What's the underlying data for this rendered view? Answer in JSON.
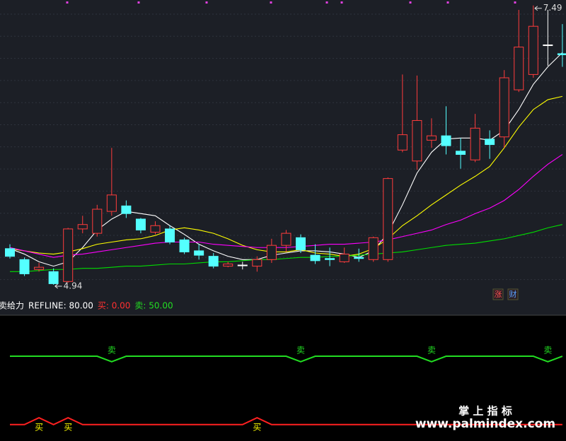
{
  "chart_data": [
    {
      "type": "candlestick",
      "open": [
        5.27,
        5.17,
        5.08,
        5.06,
        4.97,
        5.45,
        5.41,
        5.61,
        5.66,
        5.54,
        5.42,
        5.45,
        5.35,
        5.25,
        5.2,
        5.11,
        5.12,
        5.11,
        5.17,
        5.3,
        5.37,
        5.21,
        5.18,
        5.15,
        5.19,
        5.17,
        5.17,
        6.17,
        6.07,
        6.26,
        6.3,
        6.16,
        6.08,
        6.27,
        6.29,
        6.72,
        6.86,
        7.13,
        7.05
      ],
      "high": [
        5.31,
        5.19,
        5.14,
        5.09,
        5.46,
        5.57,
        5.67,
        6.19,
        5.71,
        5.55,
        5.52,
        5.48,
        5.37,
        5.31,
        5.23,
        5.15,
        5.15,
        5.2,
        5.36,
        5.44,
        5.4,
        5.31,
        5.28,
        5.28,
        5.27,
        5.38,
        5.92,
        6.86,
        6.85,
        6.46,
        6.57,
        6.28,
        6.5,
        6.35,
        6.9,
        7.45,
        7.49,
        7.45,
        7.32
      ],
      "low": [
        5.18,
        5.02,
        5.06,
        4.94,
        4.96,
        5.41,
        5.38,
        5.57,
        5.55,
        5.41,
        5.4,
        5.31,
        5.22,
        5.17,
        5.09,
        5.1,
        5.08,
        5.06,
        5.14,
        5.24,
        5.23,
        5.13,
        5.11,
        5.14,
        5.15,
        5.15,
        5.15,
        6.15,
        5.99,
        6.19,
        6.13,
        6.0,
        6.06,
        6.09,
        6.19,
        6.7,
        6.83,
        6.94,
        6.93
      ],
      "close": [
        5.2,
        5.04,
        5.1,
        4.95,
        5.45,
        5.49,
        5.63,
        5.76,
        5.59,
        5.44,
        5.48,
        5.33,
        5.24,
        5.21,
        5.11,
        5.13,
        5.12,
        5.17,
        5.3,
        5.41,
        5.26,
        5.16,
        5.17,
        5.22,
        5.18,
        5.37,
        5.91,
        6.31,
        6.44,
        6.3,
        6.21,
        6.13,
        6.37,
        6.22,
        6.83,
        7.11,
        7.3,
        7.13,
        7.04
      ],
      "up_color": "#ff3c3c",
      "down_color": "#54ffff",
      "flat_color": "#ffffff",
      "series": [
        {
          "color": "#ffffff",
          "values": [
            5.27,
            5.22,
            5.15,
            5.11,
            5.15,
            5.28,
            5.44,
            5.54,
            5.61,
            5.59,
            5.57,
            5.48,
            5.4,
            5.31,
            5.25,
            5.2,
            5.17,
            5.17,
            5.21,
            5.23,
            5.25,
            5.25,
            5.24,
            5.22,
            5.19,
            5.25,
            5.41,
            5.67,
            5.96,
            6.15,
            6.27,
            6.28,
            6.28,
            6.26,
            6.35,
            6.54,
            6.77,
            6.93,
            7.06
          ]
        },
        {
          "color": "#ffff00",
          "values": [
            5.27,
            5.25,
            5.23,
            5.22,
            5.24,
            5.27,
            5.31,
            5.33,
            5.35,
            5.36,
            5.39,
            5.44,
            5.46,
            5.44,
            5.41,
            5.36,
            5.3,
            5.26,
            5.24,
            5.24,
            5.26,
            5.23,
            5.22,
            5.2,
            5.22,
            5.27,
            5.36,
            5.48,
            5.57,
            5.67,
            5.76,
            5.85,
            5.93,
            6.02,
            6.19,
            6.38,
            6.54,
            6.63,
            6.66
          ]
        },
        {
          "color": "#ff00ff",
          "values": [
            5.28,
            5.25,
            5.22,
            5.19,
            5.21,
            5.22,
            5.24,
            5.26,
            5.28,
            5.3,
            5.32,
            5.33,
            5.33,
            5.33,
            5.31,
            5.3,
            5.29,
            5.28,
            5.28,
            5.28,
            5.29,
            5.3,
            5.31,
            5.31,
            5.32,
            5.33,
            5.35,
            5.38,
            5.41,
            5.44,
            5.49,
            5.53,
            5.59,
            5.64,
            5.71,
            5.81,
            5.93,
            6.04,
            6.13
          ]
        },
        {
          "color": "#00dd00",
          "values": [
            5.06,
            5.06,
            5.07,
            5.08,
            5.08,
            5.09,
            5.09,
            5.1,
            5.11,
            5.11,
            5.12,
            5.13,
            5.13,
            5.14,
            5.15,
            5.15,
            5.16,
            5.17,
            5.17,
            5.18,
            5.19,
            5.19,
            5.2,
            5.2,
            5.21,
            5.22,
            5.23,
            5.24,
            5.26,
            5.28,
            5.3,
            5.31,
            5.32,
            5.34,
            5.36,
            5.39,
            5.42,
            5.46,
            5.49
          ]
        }
      ],
      "ylim": [
        4.83,
        7.54
      ],
      "max_label": "7.49",
      "min_label": "4.94",
      "badges": [
        "涨",
        "财"
      ]
    },
    {
      "type": "line",
      "header": [
        "卖给力",
        "REFLINE: 80.00",
        "买: 0.00",
        "卖: 50.00"
      ],
      "ylim": [
        -12,
        80
      ],
      "series": [
        {
          "color": "#22dd22",
          "label_color": "#22dd22",
          "values": [
            50,
            50,
            50,
            50,
            50,
            50,
            50,
            46,
            50,
            50,
            50,
            50,
            50,
            50,
            50,
            50,
            50,
            50,
            50,
            50,
            46,
            50,
            50,
            50,
            50,
            50,
            50,
            50,
            50,
            46,
            50,
            50,
            50,
            50,
            50,
            50,
            50,
            46,
            50
          ],
          "signal_labels": [
            null,
            null,
            null,
            null,
            null,
            null,
            null,
            "卖",
            null,
            null,
            null,
            null,
            null,
            null,
            null,
            null,
            null,
            null,
            null,
            null,
            "卖",
            null,
            null,
            null,
            null,
            null,
            null,
            null,
            null,
            "卖",
            null,
            null,
            null,
            null,
            null,
            null,
            null,
            "卖",
            null
          ]
        },
        {
          "color": "#ff2020",
          "label_color": "#ffff00",
          "values": [
            0,
            0,
            5,
            0,
            5,
            0,
            0,
            0,
            0,
            0,
            0,
            0,
            0,
            0,
            0,
            0,
            0,
            5,
            0,
            0,
            0,
            0,
            0,
            0,
            0,
            0,
            0,
            0,
            0,
            0,
            0,
            0,
            0,
            0,
            0,
            0,
            0,
            0,
            0
          ],
          "signal_labels": [
            null,
            null,
            "买",
            null,
            "买",
            null,
            null,
            null,
            null,
            null,
            null,
            null,
            null,
            null,
            null,
            null,
            null,
            "买",
            null,
            null,
            null,
            null,
            null,
            null,
            null,
            null,
            null,
            null,
            null,
            null,
            null,
            null,
            null,
            null,
            null,
            null,
            null,
            null,
            null
          ]
        }
      ],
      "watermark": [
        "掌 上 指 标",
        "www.palmindex.com"
      ]
    }
  ]
}
